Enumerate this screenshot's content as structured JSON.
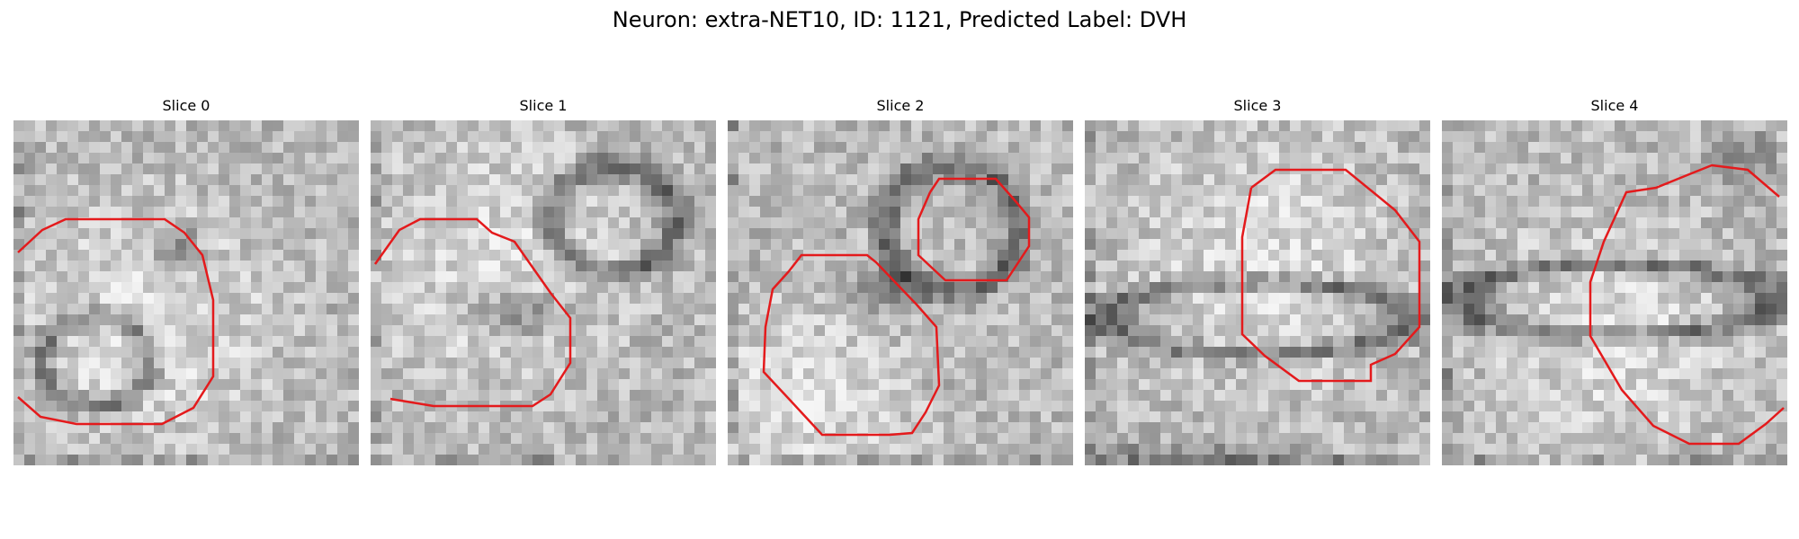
{
  "figure": {
    "title": "Neuron: extra-NET10, ID: 1121, Predicted Label: DVH"
  },
  "panels": [
    {
      "title": "Slice 0",
      "image": "grayscale-microscopy-slice",
      "contour_color": "#e41a1c"
    },
    {
      "title": "Slice 1",
      "image": "grayscale-microscopy-slice",
      "contour_color": "#e41a1c"
    },
    {
      "title": "Slice 2",
      "image": "grayscale-microscopy-slice",
      "contour_color": "#e41a1c"
    },
    {
      "title": "Slice 3",
      "image": "grayscale-microscopy-slice",
      "contour_color": "#e41a1c"
    },
    {
      "title": "Slice 4",
      "image": "grayscale-microscopy-slice",
      "contour_color": "#e41a1c"
    }
  ]
}
